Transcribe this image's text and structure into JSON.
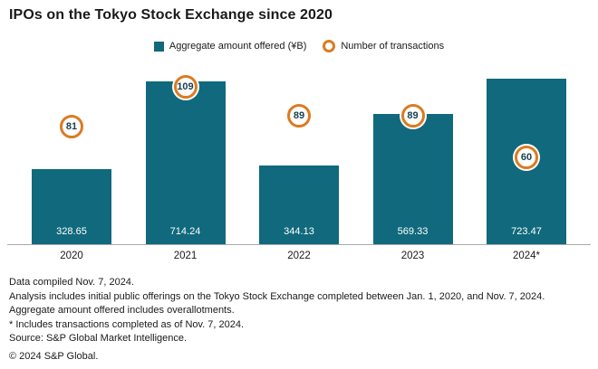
{
  "title": "IPOs on the Tokyo Stock Exchange since 2020",
  "legend": {
    "amount_label": "Aggregate amount offered (¥B)",
    "transactions_label": "Number of transactions"
  },
  "colors": {
    "bar": "#10697c",
    "badge_ring": "#db7b21",
    "badge_text": "#173f4f"
  },
  "chart_data": {
    "type": "bar",
    "categories": [
      "2020",
      "2021",
      "2022",
      "2023",
      "2024*"
    ],
    "series": [
      {
        "name": "Aggregate amount offered (¥B)",
        "values": [
          328.65,
          714.24,
          344.13,
          569.33,
          723.47
        ]
      },
      {
        "name": "Number of transactions",
        "values": [
          81,
          109,
          89,
          89,
          60
        ]
      }
    ],
    "title": "IPOs on the Tokyo Stock Exchange since 2020",
    "xlabel": "",
    "ylabel": "",
    "ylim": [
      0,
      760
    ],
    "y2lim": [
      0,
      120
    ],
    "grid": false,
    "legend_position": "top"
  },
  "footnotes": [
    "Data compiled Nov. 7, 2024.",
    "Analysis includes initial public offerings on the Tokyo Stock Exchange completed between Jan. 1, 2020, and Nov. 7, 2024.",
    "Aggregate amount offered includes overallotments.",
    "* Includes transactions completed as of Nov. 7, 2024.",
    "Source: S&P Global Market Intelligence.",
    "© 2024 S&P Global."
  ]
}
